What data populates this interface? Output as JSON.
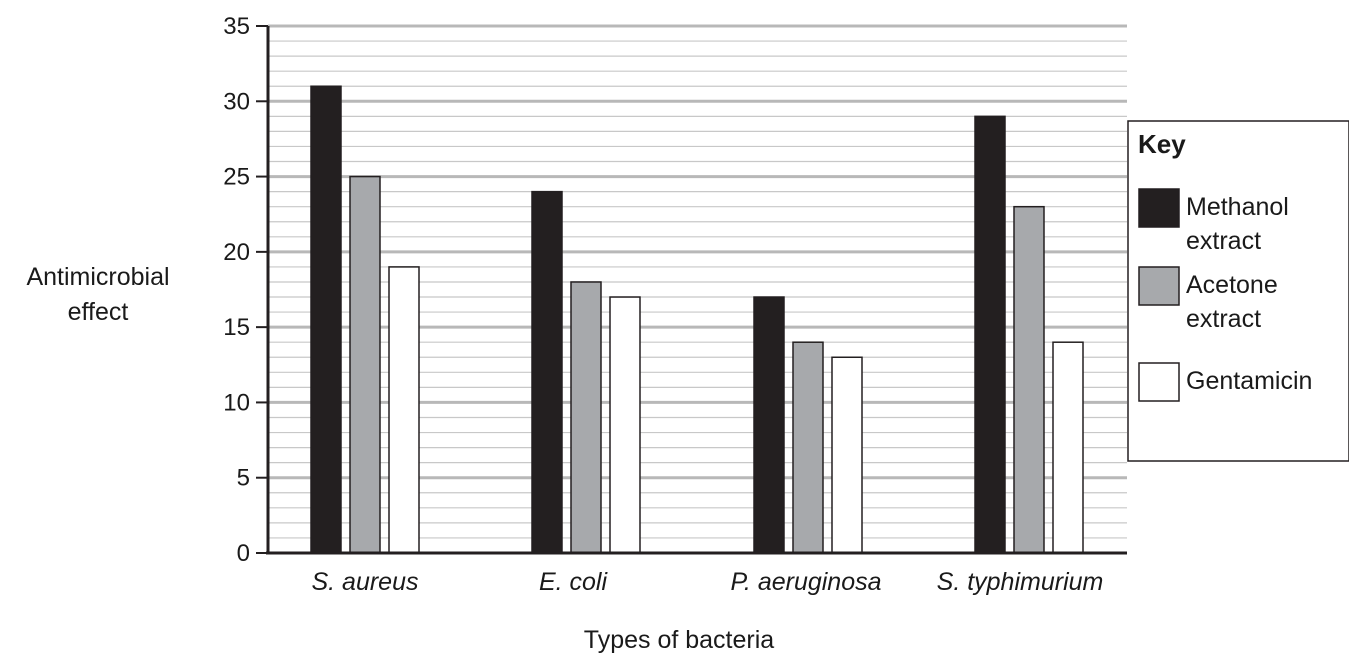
{
  "chart_data": {
    "type": "bar",
    "title": "",
    "xlabel": "Types of bacteria",
    "ylabel_lines": [
      "Antimicrobial",
      "effect"
    ],
    "ylim": [
      0,
      35
    ],
    "yticks": [
      0,
      5,
      10,
      15,
      20,
      25,
      30,
      35
    ],
    "minor_grid_step": 1,
    "grid": true,
    "categories": [
      "S. aureus",
      "E. coli",
      "P. aeruginosa",
      "S. typhimurium"
    ],
    "series": [
      {
        "name": "Methanol extract",
        "label_lines": [
          "Methanol",
          "extract"
        ],
        "color": "#231f20",
        "values": [
          31,
          24,
          17,
          29
        ]
      },
      {
        "name": "Acetone extract",
        "label_lines": [
          "Acetone",
          "extract"
        ],
        "color": "#a7a9ac",
        "values": [
          25,
          18,
          14,
          23
        ]
      },
      {
        "name": "Gentamicin",
        "label_lines": [
          "Gentamicin"
        ],
        "color": "#ffffff",
        "values": [
          19,
          17,
          13,
          14
        ]
      }
    ],
    "legend": {
      "title": "Key",
      "position": "right"
    }
  }
}
